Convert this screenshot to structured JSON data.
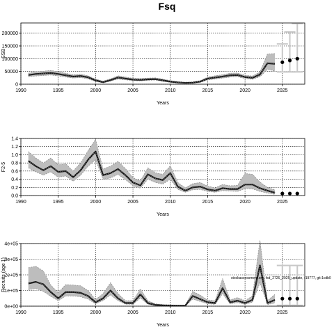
{
  "title": "Fsq",
  "note": "stockassessment.org, fsd_2726_2025_update, r19777, git:1cdb0",
  "chart_data": [
    {
      "type": "line",
      "ylabel": "SSB",
      "xlabel": "Years",
      "xlim": [
        1990,
        2028
      ],
      "ylim": [
        0,
        240000
      ],
      "xticks": [
        "1990",
        "1995",
        "2000",
        "2005",
        "2010",
        "2015",
        "2020",
        "2025"
      ],
      "xtick_values": [
        1990,
        1995,
        2000,
        2005,
        2010,
        2015,
        2020,
        2025
      ],
      "yticks": [
        "0",
        "50000",
        "100000",
        "150000",
        "200000"
      ],
      "ytick_values": [
        0,
        50000,
        100000,
        150000,
        200000
      ],
      "grid": true,
      "x": [
        1991,
        1992,
        1993,
        1994,
        1995,
        1996,
        1997,
        1998,
        1999,
        2000,
        2001,
        2002,
        2003,
        2004,
        2005,
        2006,
        2007,
        2008,
        2009,
        2010,
        2011,
        2012,
        2013,
        2014,
        2015,
        2016,
        2017,
        2018,
        2019,
        2020,
        2021,
        2022,
        2023,
        2024
      ],
      "mid": [
        36000,
        40000,
        42000,
        44000,
        40000,
        35000,
        30000,
        32000,
        27000,
        15000,
        8000,
        16000,
        26000,
        22000,
        18000,
        17000,
        19000,
        20000,
        15000,
        10000,
        7000,
        5000,
        6000,
        10000,
        22000,
        26000,
        30000,
        35000,
        36000,
        28000,
        25000,
        38000,
        82000,
        80000
      ],
      "low": [
        29000,
        32000,
        34000,
        36000,
        32000,
        28000,
        24000,
        26000,
        21000,
        11000,
        5000,
        12000,
        20000,
        17000,
        14000,
        13000,
        15000,
        16000,
        11000,
        7000,
        4500,
        3000,
        4000,
        7000,
        17000,
        20000,
        24000,
        28000,
        29000,
        22000,
        19000,
        29000,
        58000,
        52000
      ],
      "high": [
        43000,
        49000,
        51000,
        54000,
        49000,
        43000,
        37000,
        39000,
        33000,
        20000,
        12000,
        21000,
        33000,
        28000,
        23000,
        22000,
        24000,
        25000,
        20000,
        14000,
        10000,
        8000,
        9000,
        14000,
        28000,
        33000,
        37000,
        43000,
        44000,
        35000,
        32000,
        48000,
        118000,
        120000
      ],
      "forecast": {
        "x": [
          2025,
          2026,
          2027
        ],
        "mid": [
          86000,
          93000,
          100000
        ],
        "low": [
          48000,
          48000,
          48000
        ],
        "high": [
          158000,
          205000,
          238000
        ]
      }
    },
    {
      "type": "line",
      "ylabel": "F2-5",
      "xlabel": "Years",
      "xlim": [
        1990,
        2028
      ],
      "ylim": [
        0,
        1.4
      ],
      "xticks": [
        "1990",
        "1995",
        "2000",
        "2005",
        "2010",
        "2015",
        "2020",
        "2025"
      ],
      "xtick_values": [
        1990,
        1995,
        2000,
        2005,
        2010,
        2015,
        2020,
        2025
      ],
      "yticks": [
        "0.0",
        "0.2",
        "0.4",
        "0.6",
        "0.8",
        "1.0",
        "1.2",
        "1.4"
      ],
      "ytick_values": [
        0,
        0.2,
        0.4,
        0.6,
        0.8,
        1.0,
        1.2,
        1.4
      ],
      "grid": true,
      "x": [
        1991,
        1992,
        1993,
        1994,
        1995,
        1996,
        1997,
        1998,
        1999,
        2000,
        2001,
        2002,
        2003,
        2004,
        2005,
        2006,
        2007,
        2008,
        2009,
        2010,
        2011,
        2012,
        2013,
        2014,
        2015,
        2016,
        2017,
        2018,
        2019,
        2020,
        2021,
        2022,
        2023,
        2024
      ],
      "mid": [
        0.85,
        0.72,
        0.62,
        0.72,
        0.58,
        0.6,
        0.45,
        0.62,
        0.88,
        1.08,
        0.5,
        0.55,
        0.65,
        0.5,
        0.32,
        0.25,
        0.52,
        0.42,
        0.38,
        0.55,
        0.22,
        0.12,
        0.2,
        0.22,
        0.15,
        0.12,
        0.18,
        0.16,
        0.16,
        0.27,
        0.27,
        0.18,
        0.12,
        0.07
      ],
      "low": [
        0.68,
        0.58,
        0.5,
        0.58,
        0.45,
        0.48,
        0.35,
        0.5,
        0.72,
        0.88,
        0.4,
        0.43,
        0.52,
        0.39,
        0.24,
        0.18,
        0.4,
        0.32,
        0.28,
        0.4,
        0.15,
        0.08,
        0.14,
        0.15,
        0.1,
        0.08,
        0.12,
        0.11,
        0.1,
        0.17,
        0.16,
        0.1,
        0.06,
        0.03
      ],
      "high": [
        1.08,
        0.92,
        0.8,
        0.92,
        0.75,
        0.78,
        0.6,
        0.8,
        1.1,
        1.38,
        0.65,
        0.72,
        0.84,
        0.66,
        0.44,
        0.36,
        0.68,
        0.56,
        0.52,
        0.73,
        0.32,
        0.19,
        0.29,
        0.32,
        0.23,
        0.19,
        0.27,
        0.24,
        0.25,
        0.54,
        0.52,
        0.33,
        0.2,
        0.14
      ],
      "forecast": {
        "x": [
          2025,
          2026,
          2027
        ],
        "mid": [
          0.05,
          0.05,
          0.05
        ],
        "low": [
          0.05,
          0.05,
          0.05
        ],
        "high": [
          0.05,
          0.05,
          0.05
        ]
      }
    },
    {
      "type": "line",
      "ylabel": "Recruits (age 1)",
      "xlabel": "Years",
      "xlim": [
        1990,
        2028
      ],
      "ylim": [
        0,
        400000
      ],
      "xticks": [
        "1990",
        "1995",
        "2000",
        "2005",
        "2010",
        "2015",
        "2020",
        "2025"
      ],
      "xtick_values": [
        1990,
        1995,
        2000,
        2005,
        2010,
        2015,
        2020,
        2025
      ],
      "yticks": [
        "0e+00",
        "1e+05",
        "2e+05",
        "3e+05",
        "4e+05"
      ],
      "ytick_values": [
        0,
        100000,
        200000,
        300000,
        400000
      ],
      "grid": true,
      "x": [
        1991,
        1992,
        1993,
        1994,
        1995,
        1996,
        1997,
        1998,
        1999,
        2000,
        2001,
        2002,
        2003,
        2004,
        2005,
        2006,
        2007,
        2008,
        2009,
        2010,
        2011,
        2012,
        2013,
        2014,
        2015,
        2016,
        2017,
        2018,
        2019,
        2020,
        2021,
        2022,
        2023,
        2024
      ],
      "mid": [
        145000,
        155000,
        140000,
        90000,
        50000,
        90000,
        90000,
        85000,
        65000,
        25000,
        50000,
        100000,
        50000,
        20000,
        20000,
        75000,
        20000,
        8000,
        5000,
        4000,
        3000,
        3000,
        65000,
        45000,
        25000,
        20000,
        115000,
        25000,
        35000,
        20000,
        40000,
        260000,
        20000,
        40000
      ],
      "low": [
        105000,
        112000,
        95000,
        62000,
        35000,
        65000,
        65000,
        60000,
        45000,
        15000,
        35000,
        72000,
        35000,
        12000,
        12000,
        52000,
        12000,
        4000,
        2000,
        1500,
        1000,
        1000,
        45000,
        30000,
        15000,
        12000,
        80000,
        15000,
        22000,
        12000,
        25000,
        150000,
        10000,
        20000
      ],
      "high": [
        245000,
        255000,
        225000,
        135000,
        85000,
        138000,
        135000,
        130000,
        100000,
        42000,
        80000,
        150000,
        80000,
        35000,
        35000,
        110000,
        35000,
        15000,
        10000,
        8000,
        7000,
        7000,
        95000,
        70000,
        40000,
        35000,
        175000,
        40000,
        55000,
        35000,
        65000,
        420000,
        35000,
        75000
      ],
      "forecast": {
        "x": [
          2025,
          2026,
          2027
        ],
        "mid": [
          48000,
          48000,
          48000
        ],
        "low": [
          5000,
          5000,
          5000
        ],
        "high": [
          260000,
          260000,
          260000
        ]
      }
    }
  ]
}
